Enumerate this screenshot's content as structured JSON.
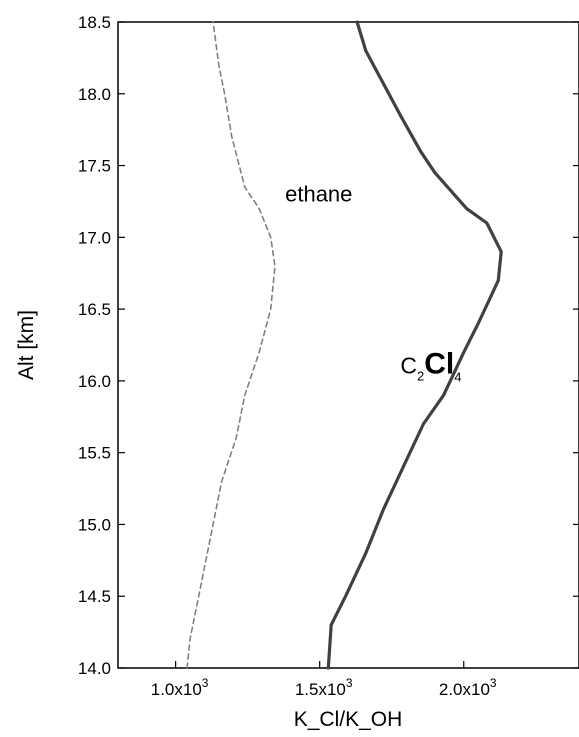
{
  "chart_data": {
    "type": "line",
    "xlabel": "K_Cl/K_OH",
    "ylabel": "Alt [km]",
    "xlim": [
      800,
      2400
    ],
    "ylim": [
      14.0,
      18.5
    ],
    "x_ticks": [
      {
        "value": 1000,
        "mantissa": "1.0x10",
        "exp": "3"
      },
      {
        "value": 1500,
        "mantissa": "1.5x10",
        "exp": "3"
      },
      {
        "value": 2000,
        "mantissa": "2.0x10",
        "exp": "3"
      }
    ],
    "y_ticks": [
      {
        "value": 14.0,
        "label": "14.0"
      },
      {
        "value": 14.5,
        "label": "14.5"
      },
      {
        "value": 15.0,
        "label": "15.0"
      },
      {
        "value": 15.5,
        "label": "15.5"
      },
      {
        "value": 16.0,
        "label": "16.0"
      },
      {
        "value": 16.5,
        "label": "16.5"
      },
      {
        "value": 17.0,
        "label": "17.0"
      },
      {
        "value": 17.5,
        "label": "17.5"
      },
      {
        "value": 18.0,
        "label": "18.0"
      },
      {
        "value": 18.5,
        "label": "18.5"
      }
    ],
    "grid": false,
    "series": [
      {
        "name": "ethane",
        "style": "dashed",
        "color": "#808080",
        "points": [
          [
            1040,
            14.0
          ],
          [
            1050,
            14.2
          ],
          [
            1080,
            14.5
          ],
          [
            1120,
            14.9
          ],
          [
            1160,
            15.3
          ],
          [
            1210,
            15.6
          ],
          [
            1240,
            15.9
          ],
          [
            1290,
            16.2
          ],
          [
            1330,
            16.5
          ],
          [
            1345,
            16.8
          ],
          [
            1330,
            17.0
          ],
          [
            1290,
            17.2
          ],
          [
            1240,
            17.35
          ],
          [
            1195,
            17.7
          ],
          [
            1170,
            18.0
          ],
          [
            1150,
            18.2
          ],
          [
            1130,
            18.5
          ]
        ]
      },
      {
        "name": "C2Cl4",
        "style": "solid",
        "color": "#404040",
        "points": [
          [
            1530,
            14.0
          ],
          [
            1540,
            14.3
          ],
          [
            1590,
            14.5
          ],
          [
            1660,
            14.8
          ],
          [
            1720,
            15.1
          ],
          [
            1790,
            15.4
          ],
          [
            1860,
            15.7
          ],
          [
            1930,
            15.9
          ],
          [
            2000,
            16.2
          ],
          [
            2050,
            16.4
          ],
          [
            2120,
            16.7
          ],
          [
            2130,
            16.9
          ],
          [
            2080,
            17.1
          ],
          [
            2010,
            17.2
          ],
          [
            1900,
            17.45
          ],
          [
            1850,
            17.6
          ],
          [
            1780,
            17.85
          ],
          [
            1700,
            18.15
          ],
          [
            1660,
            18.3
          ],
          [
            1630,
            18.5
          ]
        ]
      }
    ],
    "annotations": {
      "ethane": {
        "text": "ethane",
        "x": 1380,
        "y": 17.25
      },
      "c2cl4": {
        "base1": "C",
        "sub1": "2",
        "base2": "Cl",
        "sub2": "4",
        "x": 1780,
        "y": 16.05
      }
    }
  }
}
